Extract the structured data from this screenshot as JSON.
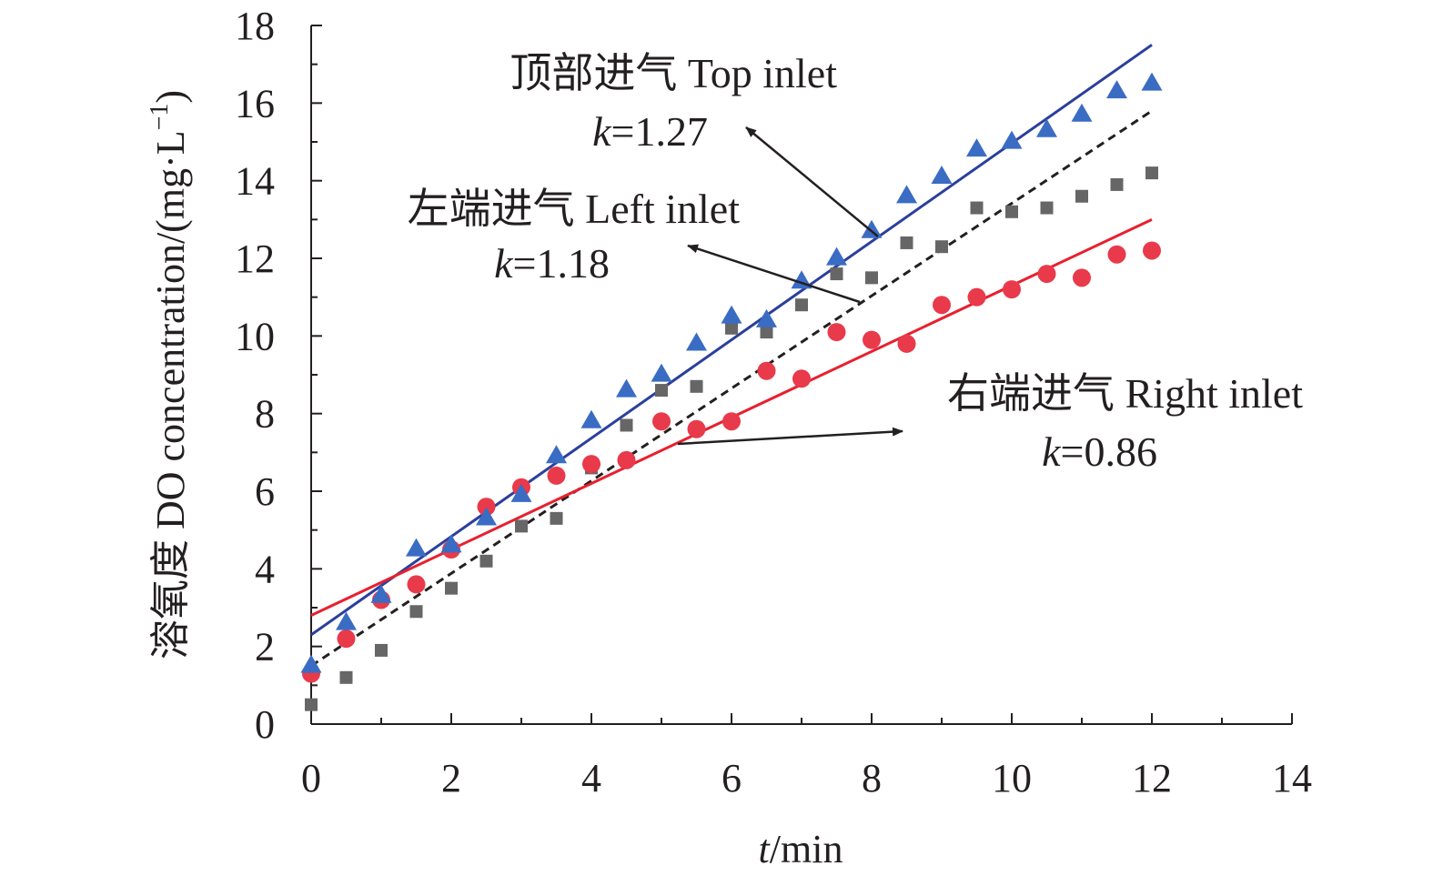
{
  "chart_data": {
    "type": "scatter",
    "xlabel_italic": "t",
    "xlabel_rest": "/min",
    "ylabel": "溶氧度 DO concentration/(mg·L",
    "ylabel_sup": "−1",
    "ylabel_close": ")",
    "xlim": [
      0,
      14
    ],
    "ylim": [
      0,
      18
    ],
    "x_ticks": [
      0,
      2,
      4,
      6,
      8,
      10,
      12,
      14
    ],
    "y_ticks": [
      0,
      2,
      4,
      6,
      8,
      10,
      12,
      14,
      16,
      18
    ],
    "x_tick_labels": [
      "0",
      "2",
      "4",
      "6",
      "8",
      "10",
      "12",
      "14"
    ],
    "y_tick_labels": [
      "0",
      "2",
      "4",
      "6",
      "8",
      "10",
      "12",
      "14",
      "16",
      "18"
    ],
    "x": [
      0,
      0.5,
      1,
      1.5,
      2,
      2.5,
      3,
      3.5,
      4,
      4.5,
      5,
      5.5,
      6,
      6.5,
      7,
      7.5,
      8,
      8.5,
      9,
      9.5,
      10,
      10.5,
      11,
      11.5,
      12
    ],
    "series": [
      {
        "name": "顶部进气 Top inlet",
        "marker": "triangle",
        "color": "#3a6cc4",
        "line_color": "#2b3f9c",
        "line_style": "solid",
        "k_prefix": "k",
        "k_value": "=1.27",
        "values": [
          1.5,
          2.6,
          3.3,
          4.5,
          4.6,
          5.3,
          5.9,
          6.9,
          7.8,
          8.6,
          9.0,
          9.8,
          10.5,
          10.4,
          11.4,
          12.0,
          12.7,
          13.6,
          14.1,
          14.8,
          15.0,
          15.3,
          15.7,
          16.3,
          16.5
        ],
        "fit": {
          "x": [
            0,
            12
          ],
          "y": [
            2.3,
            17.5
          ]
        }
      },
      {
        "name": "左端进气 Left inlet",
        "marker": "square",
        "color": "#666666",
        "line_color": "#231f20",
        "line_style": "dashed",
        "k_prefix": "k",
        "k_value": "=1.18",
        "values": [
          0.5,
          1.2,
          1.9,
          2.9,
          3.5,
          4.2,
          5.1,
          5.3,
          6.6,
          7.7,
          8.6,
          8.7,
          10.2,
          10.1,
          10.8,
          11.6,
          11.5,
          12.4,
          12.3,
          13.3,
          13.2,
          13.3,
          13.6,
          13.9,
          14.2
        ],
        "fit": {
          "x": [
            0,
            12
          ],
          "y": [
            1.5,
            15.8
          ]
        }
      },
      {
        "name": "右端进气 Right inlet",
        "marker": "circle",
        "color": "#e83a4a",
        "line_color": "#e8202f",
        "line_style": "solid",
        "k_prefix": "k",
        "k_value": "=0.86",
        "values": [
          1.3,
          2.2,
          3.2,
          3.6,
          4.5,
          5.6,
          6.1,
          6.4,
          6.7,
          6.8,
          7.8,
          7.6,
          7.8,
          9.1,
          8.9,
          10.1,
          9.9,
          9.8,
          10.8,
          11.0,
          11.2,
          11.6,
          11.5,
          12.1,
          12.2
        ],
        "fit": {
          "x": [
            0,
            12
          ],
          "y": [
            2.8,
            13.0
          ]
        }
      }
    ]
  }
}
